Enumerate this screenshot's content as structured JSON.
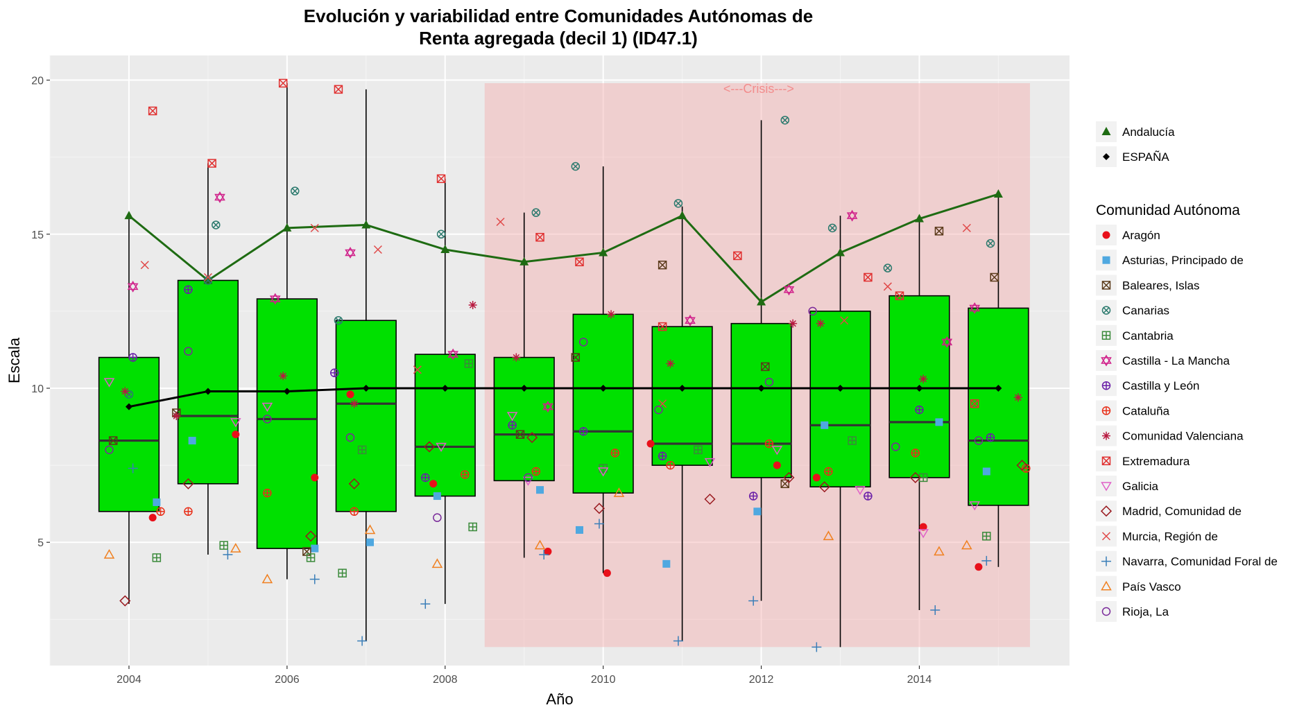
{
  "chart_data": {
    "type": "boxplot",
    "title_line1": "Evolución y variabilidad entre Comunidades Autónomas de",
    "title_line2": "Renta agregada (decil 1) (ID47.1)",
    "xlabel": "Año",
    "ylabel": "Escala",
    "xlim": [
      2003.0,
      2015.9
    ],
    "ylim": [
      1.0,
      20.8
    ],
    "x_ticks": [
      2004,
      2006,
      2008,
      2010,
      2012,
      2014
    ],
    "y_ticks": [
      5,
      10,
      15,
      20
    ],
    "crisis": {
      "label": "<---Crisis--->",
      "x_start": 2008.5,
      "x_end": 2015.4,
      "y_start": 1.6,
      "y_end": 19.9,
      "color": "#F4AEAE"
    },
    "box_color": "#00E000",
    "boxes": [
      {
        "year": 2004,
        "q1": 6.0,
        "median": 8.3,
        "q3": 11.0,
        "wmin": 3.0,
        "wmax": 15.5
      },
      {
        "year": 2005,
        "q1": 6.9,
        "median": 9.1,
        "q3": 13.5,
        "wmin": 4.6,
        "wmax": 17.3
      },
      {
        "year": 2006,
        "q1": 4.8,
        "median": 9.0,
        "q3": 12.9,
        "wmin": 3.8,
        "wmax": 19.9
      },
      {
        "year": 2007,
        "q1": 6.0,
        "median": 9.5,
        "q3": 12.2,
        "wmin": 1.8,
        "wmax": 19.7
      },
      {
        "year": 2008,
        "q1": 6.5,
        "median": 8.1,
        "q3": 11.1,
        "wmin": 3.0,
        "wmax": 16.8
      },
      {
        "year": 2009,
        "q1": 7.0,
        "median": 8.5,
        "q3": 11.0,
        "wmin": 4.5,
        "wmax": 15.7
      },
      {
        "year": 2010,
        "q1": 6.6,
        "median": 8.6,
        "q3": 12.4,
        "wmin": 4.0,
        "wmax": 17.2
      },
      {
        "year": 2011,
        "q1": 7.5,
        "median": 8.2,
        "q3": 12.0,
        "wmin": 1.8,
        "wmax": 15.9
      },
      {
        "year": 2012,
        "q1": 7.1,
        "median": 8.2,
        "q3": 12.1,
        "wmin": 3.1,
        "wmax": 18.7
      },
      {
        "year": 2013,
        "q1": 6.8,
        "median": 8.8,
        "q3": 12.5,
        "wmin": 1.6,
        "wmax": 15.6
      },
      {
        "year": 2014,
        "q1": 7.1,
        "median": 8.9,
        "q3": 13.0,
        "wmin": 2.8,
        "wmax": 15.5
      },
      {
        "year": 2015,
        "q1": 6.2,
        "median": 8.3,
        "q3": 12.6,
        "wmin": 4.2,
        "wmax": 16.2
      }
    ],
    "lines": [
      {
        "name": "Andalucía",
        "color": "#1E6B12",
        "marker": "triangle",
        "x": [
          2004,
          2005,
          2006,
          2007,
          2008,
          2009,
          2010,
          2011,
          2012,
          2013,
          2014,
          2015
        ],
        "values": [
          15.6,
          13.5,
          15.2,
          15.3,
          14.5,
          14.1,
          14.4,
          15.6,
          12.8,
          14.4,
          15.5,
          16.3
        ]
      },
      {
        "name": "ESPAÑA",
        "color": "#000000",
        "marker": "diamond",
        "x": [
          2004,
          2005,
          2006,
          2007,
          2008,
          2009,
          2010,
          2011,
          2012,
          2013,
          2014,
          2015
        ],
        "values": [
          9.4,
          9.9,
          9.9,
          10.0,
          10.0,
          10.0,
          10.0,
          10.0,
          10.0,
          10.0,
          10.0,
          10.0
        ]
      }
    ],
    "legend_title": "Comunidad Autónoma",
    "series": [
      {
        "name": "Aragón",
        "color": "#E8101A",
        "shape": "dot",
        "x": [
          2004.3,
          2005.35,
          2006.35,
          2006.8,
          2007.85,
          2009.3,
          2010.05,
          2010.6,
          2012.2,
          2012.7,
          2014.05,
          2014.75
        ],
        "values": [
          5.8,
          8.5,
          7.1,
          9.8,
          6.9,
          4.7,
          4.0,
          8.2,
          7.5,
          7.1,
          5.5,
          4.2
        ]
      },
      {
        "name": "Asturias, Principado de",
        "color": "#4FA8E0",
        "shape": "square",
        "x": [
          2004.35,
          2004.8,
          2006.35,
          2007.05,
          2007.9,
          2009.2,
          2009.7,
          2010.8,
          2011.95,
          2012.8,
          2014.25,
          2014.85
        ],
        "values": [
          6.3,
          8.3,
          4.8,
          5.0,
          6.5,
          6.7,
          5.4,
          4.3,
          6.0,
          8.8,
          8.9,
          7.3
        ]
      },
      {
        "name": "Baleares, Islas",
        "color": "#5A3A1A",
        "shape": "boxx",
        "x": [
          2003.8,
          2004.6,
          2006.25,
          2008.95,
          2009.65,
          2010.75,
          2012.05,
          2012.3,
          2014.25,
          2014.95
        ],
        "values": [
          8.3,
          9.2,
          4.7,
          8.5,
          11.0,
          14.0,
          10.7,
          6.9,
          15.1,
          13.6
        ]
      },
      {
        "name": "Canarias",
        "color": "#2C7A6E",
        "shape": "circx",
        "x": [
          2004.0,
          2005.0,
          2005.1,
          2006.1,
          2006.65,
          2007.95,
          2009.15,
          2009.65,
          2010.95,
          2012.3,
          2012.9,
          2013.6,
          2014.9
        ],
        "values": [
          9.8,
          13.5,
          15.3,
          16.4,
          12.2,
          15.0,
          15.7,
          17.2,
          16.0,
          18.7,
          15.2,
          13.9,
          14.7
        ]
      },
      {
        "name": "Cantabria",
        "color": "#3A8A3A",
        "shape": "boxplus",
        "x": [
          2004.35,
          2005.2,
          2006.3,
          2006.7,
          2006.95,
          2008.3,
          2008.35,
          2010.0,
          2011.2,
          2013.15,
          2014.05,
          2014.85
        ],
        "values": [
          4.5,
          4.9,
          4.5,
          4.0,
          8.0,
          10.8,
          5.5,
          7.4,
          8.0,
          8.3,
          7.1,
          5.2
        ]
      },
      {
        "name": "Castilla - La Mancha",
        "color": "#D0208A",
        "shape": "star",
        "x": [
          2004.05,
          2005.15,
          2005.85,
          2006.8,
          2008.1,
          2009.3,
          2011.1,
          2012.35,
          2013.15,
          2014.35,
          2014.7
        ],
        "values": [
          13.3,
          16.2,
          12.9,
          14.4,
          11.1,
          9.4,
          12.2,
          13.2,
          15.6,
          11.5,
          12.6
        ]
      },
      {
        "name": "Castilla y León",
        "color": "#6A1FA8",
        "shape": "circplus",
        "x": [
          2004.05,
          2004.75,
          2006.6,
          2007.75,
          2008.85,
          2009.75,
          2010.75,
          2011.9,
          2013.35,
          2014.0,
          2014.9
        ],
        "values": [
          11.0,
          13.2,
          10.5,
          7.1,
          8.8,
          8.6,
          7.8,
          6.5,
          6.5,
          9.3,
          8.4
        ]
      },
      {
        "name": "Cataluña",
        "color": "#E8301A",
        "shape": "circplus",
        "x": [
          2004.4,
          2004.75,
          2005.75,
          2006.85,
          2008.25,
          2009.15,
          2010.15,
          2010.85,
          2012.1,
          2012.85,
          2013.95,
          2015.35
        ],
        "values": [
          6.0,
          6.0,
          6.6,
          6.0,
          7.2,
          7.3,
          7.9,
          7.5,
          8.2,
          7.3,
          7.9,
          7.4
        ]
      },
      {
        "name": "Comunidad Valenciana",
        "color": "#B81A40",
        "shape": "asterisk",
        "x": [
          2003.95,
          2004.6,
          2005.95,
          2006.85,
          2008.35,
          2008.9,
          2010.1,
          2010.85,
          2012.4,
          2012.75,
          2014.05,
          2015.25
        ],
        "values": [
          9.9,
          9.1,
          10.4,
          9.5,
          12.7,
          11.0,
          12.4,
          10.8,
          12.1,
          12.1,
          10.3,
          9.7
        ]
      },
      {
        "name": "Extremadura",
        "color": "#E03030",
        "shape": "boxx",
        "x": [
          2004.3,
          2005.05,
          2005.95,
          2006.65,
          2007.95,
          2009.2,
          2009.7,
          2010.75,
          2011.7,
          2013.35,
          2013.75,
          2014.7
        ],
        "values": [
          19.0,
          17.3,
          19.9,
          19.7,
          16.8,
          14.9,
          14.1,
          12.0,
          14.3,
          13.6,
          13.0,
          9.5
        ]
      },
      {
        "name": "Galicia",
        "color": "#E060C8",
        "shape": "tridown",
        "x": [
          2003.75,
          2005.35,
          2005.75,
          2007.95,
          2008.85,
          2009.05,
          2010.0,
          2011.35,
          2012.2,
          2013.25,
          2014.05,
          2014.7
        ],
        "values": [
          10.2,
          8.9,
          9.4,
          8.1,
          9.1,
          7.0,
          7.3,
          7.6,
          8.0,
          6.7,
          5.3,
          6.2
        ]
      },
      {
        "name": "Madrid, Comunidad de",
        "color": "#9A1A20",
        "shape": "diamondopen",
        "x": [
          2003.95,
          2004.75,
          2006.3,
          2006.85,
          2007.8,
          2009.1,
          2009.95,
          2011.35,
          2012.35,
          2012.8,
          2013.95,
          2015.3
        ],
        "values": [
          3.1,
          6.9,
          5.2,
          6.9,
          8.1,
          8.4,
          6.1,
          6.4,
          7.1,
          6.8,
          7.1,
          7.5
        ]
      },
      {
        "name": "Murcia, Región de",
        "color": "#E04848",
        "shape": "cross",
        "x": [
          2004.2,
          2005.0,
          2006.35,
          2007.15,
          2007.65,
          2008.7,
          2010.75,
          2013.05,
          2013.6,
          2014.6
        ],
        "values": [
          14.0,
          13.6,
          15.2,
          14.5,
          10.6,
          15.4,
          9.5,
          12.2,
          13.3,
          15.2
        ]
      },
      {
        "name": "Navarra, Comunidad Foral de",
        "color": "#3A7EB8",
        "shape": "plus",
        "x": [
          2004.05,
          2005.25,
          2006.35,
          2006.95,
          2007.75,
          2009.25,
          2009.95,
          2010.95,
          2011.9,
          2012.7,
          2014.2,
          2014.85
        ],
        "values": [
          7.4,
          4.6,
          3.8,
          1.8,
          3.0,
          4.6,
          5.6,
          1.8,
          3.1,
          1.6,
          2.8,
          4.4
        ]
      },
      {
        "name": "País Vasco",
        "color": "#F08020",
        "shape": "triopen",
        "x": [
          2003.75,
          2005.35,
          2005.75,
          2007.05,
          2007.9,
          2009.2,
          2010.2,
          2012.85,
          2014.25,
          2014.6
        ],
        "values": [
          4.6,
          4.8,
          3.8,
          5.4,
          4.3,
          4.9,
          6.6,
          5.2,
          4.7,
          4.9
        ]
      },
      {
        "name": "Rioja, La",
        "color": "#7A2A9A",
        "shape": "circle",
        "x": [
          2003.75,
          2004.75,
          2005.75,
          2006.8,
          2007.9,
          2009.05,
          2009.75,
          2010.7,
          2012.1,
          2012.65,
          2013.7,
          2014.75
        ],
        "values": [
          8.0,
          11.2,
          9.0,
          8.4,
          5.8,
          7.1,
          11.5,
          9.3,
          10.2,
          12.5,
          8.1,
          8.3
        ]
      }
    ]
  }
}
